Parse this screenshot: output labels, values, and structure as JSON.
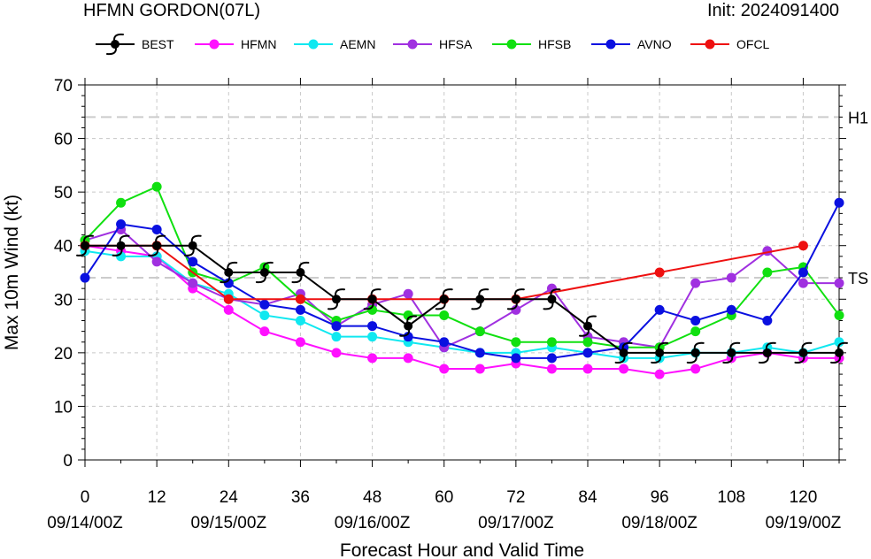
{
  "header": {
    "title": "HFMN GORDON(07L)",
    "init": "Init: 2024091400"
  },
  "colors": {
    "BEST": "#000000",
    "HFMN": "#ff10ff",
    "AEMN": "#10e8f0",
    "HFSA": "#a030e0",
    "HFSB": "#10e010",
    "AVNO": "#0a10e0",
    "OFCL": "#ee1010",
    "grid": "#c8c8c8",
    "threshold": "#cccccc"
  },
  "chart_data": {
    "type": "line",
    "xlabel": "Forecast Hour and Valid Time",
    "ylabel": "Max 10m Wind (kt)",
    "xlim": [
      0,
      126
    ],
    "ylim": [
      0,
      70
    ],
    "xticks": [
      0,
      12,
      24,
      36,
      48,
      60,
      72,
      84,
      96,
      108,
      120
    ],
    "xtick_labels": [
      "0",
      "12",
      "24",
      "36",
      "48",
      "60",
      "72",
      "84",
      "96",
      "108",
      "120"
    ],
    "date_ticks": [
      {
        "x": 0,
        "label": "09/14/00Z"
      },
      {
        "x": 24,
        "label": "09/15/00Z"
      },
      {
        "x": 48,
        "label": "09/16/00Z"
      },
      {
        "x": 72,
        "label": "09/17/00Z"
      },
      {
        "x": 96,
        "label": "09/18/00Z"
      },
      {
        "x": 120,
        "label": "09/19/00Z"
      }
    ],
    "yticks": [
      0,
      10,
      20,
      30,
      40,
      50,
      60,
      70
    ],
    "ytick_labels": [
      "0",
      "10",
      "20",
      "30",
      "40",
      "50",
      "60",
      "70"
    ],
    "thresholds": [
      {
        "y": 64,
        "label": "H1"
      },
      {
        "y": 34,
        "label": "TS"
      }
    ],
    "legend_position": "top",
    "series": [
      {
        "name": "HFMN",
        "x": [
          0,
          6,
          12,
          18,
          24,
          30,
          36,
          42,
          48,
          54,
          60,
          66,
          72,
          78,
          84,
          90,
          96,
          102,
          108,
          114,
          120,
          126
        ],
        "y": [
          40,
          39,
          38,
          32,
          28,
          24,
          22,
          20,
          19,
          19,
          17,
          17,
          18,
          17,
          17,
          17,
          16,
          17,
          19,
          20,
          19,
          19
        ]
      },
      {
        "name": "AEMN",
        "x": [
          0,
          6,
          12,
          18,
          24,
          30,
          36,
          42,
          48,
          54,
          60,
          66,
          72,
          78,
          84,
          90,
          96,
          102,
          108,
          114,
          120,
          126
        ],
        "y": [
          39,
          38,
          38,
          33,
          31,
          27,
          26,
          23,
          23,
          22,
          21,
          20,
          20,
          21,
          20,
          19,
          19,
          20,
          20,
          21,
          20,
          22
        ]
      },
      {
        "name": "HFSA",
        "x": [
          0,
          6,
          12,
          18,
          24,
          30,
          36,
          42,
          48,
          54,
          60,
          66,
          72,
          78,
          84,
          90,
          96,
          102,
          108,
          114,
          120,
          126
        ],
        "y": [
          41,
          43,
          37,
          33,
          30,
          29,
          31,
          25,
          29,
          31,
          21,
          24,
          28,
          32,
          23,
          22,
          21,
          33,
          34,
          39,
          33,
          33
        ]
      },
      {
        "name": "HFSB",
        "x": [
          0,
          6,
          12,
          18,
          24,
          30,
          36,
          42,
          48,
          54,
          60,
          66,
          72,
          78,
          84,
          90,
          96,
          102,
          108,
          114,
          120,
          126
        ],
        "y": [
          41,
          48,
          51,
          35,
          33,
          36,
          30,
          26,
          28,
          27,
          27,
          24,
          22,
          22,
          22,
          21,
          21,
          24,
          27,
          35,
          36,
          27
        ]
      },
      {
        "name": "AVNO",
        "x": [
          0,
          6,
          12,
          18,
          24,
          30,
          36,
          42,
          48,
          54,
          60,
          66,
          72,
          78,
          84,
          90,
          96,
          102,
          108,
          114,
          120,
          126
        ],
        "y": [
          34,
          44,
          43,
          37,
          33,
          29,
          28,
          25,
          25,
          23,
          22,
          20,
          19,
          19,
          20,
          21,
          28,
          26,
          28,
          26,
          35,
          48
        ]
      },
      {
        "name": "OFCL",
        "x": [
          0,
          12,
          24,
          36,
          48,
          60,
          72,
          96,
          120
        ],
        "y": [
          40,
          40,
          30,
          30,
          30,
          30,
          30,
          35,
          40
        ]
      },
      {
        "name": "BEST",
        "x": [
          0,
          6,
          12,
          18,
          24,
          30,
          36,
          42,
          48,
          54,
          60,
          66,
          72,
          78,
          84,
          90,
          96,
          102,
          108,
          114,
          120,
          126
        ],
        "y": [
          40,
          40,
          40,
          40,
          35,
          35,
          35,
          30,
          30,
          25,
          30,
          30,
          30,
          30,
          25,
          20,
          20,
          20,
          20,
          20,
          20,
          20
        ]
      }
    ],
    "legend": [
      "BEST",
      "HFMN",
      "AEMN",
      "HFSA",
      "HFSB",
      "AVNO",
      "OFCL"
    ]
  }
}
